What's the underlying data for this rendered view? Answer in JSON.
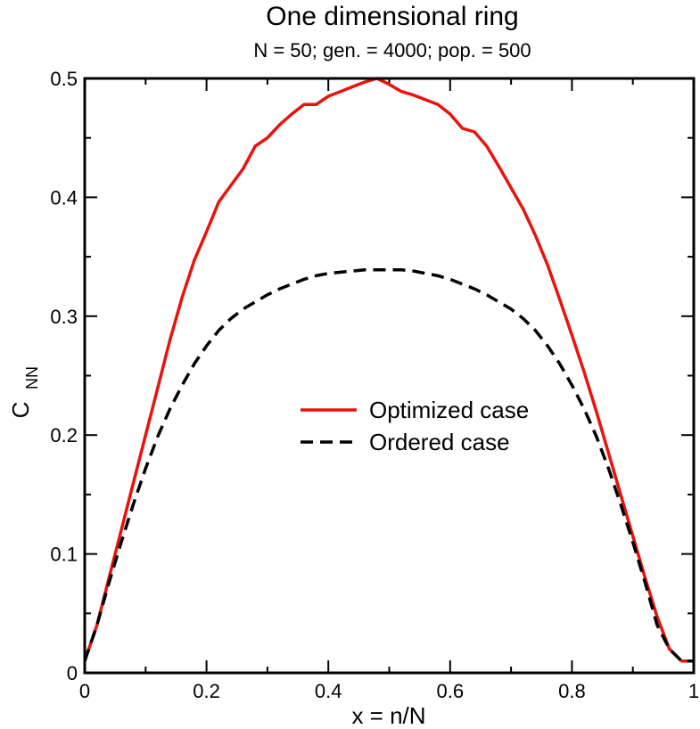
{
  "chart_data": {
    "type": "line",
    "title": "One dimensional ring",
    "subtitle": "N = 50; gen. = 4000; pop. = 500",
    "xlabel": "x = n/N",
    "ylabel_main": "C",
    "ylabel_sub": "NN",
    "xlim": [
      0,
      1
    ],
    "ylim": [
      0,
      0.5
    ],
    "x_ticks": [
      0,
      0.2,
      0.4,
      0.6,
      0.8,
      1
    ],
    "x_tick_labels": [
      "0",
      "0.2",
      "0.4",
      "0.6",
      "0.8",
      "1"
    ],
    "y_ticks": [
      0,
      0.1,
      0.2,
      0.3,
      0.4,
      0.5
    ],
    "y_tick_labels": [
      "0",
      "0.1",
      "0.2",
      "0.3",
      "0.4",
      "0.5"
    ],
    "legend_position": "center-right",
    "series": [
      {
        "name": "Optimized case",
        "color": "#e8120e",
        "style": "solid",
        "x": [
          0,
          0.02,
          0.04,
          0.06,
          0.08,
          0.1,
          0.12,
          0.14,
          0.16,
          0.18,
          0.2,
          0.22,
          0.24,
          0.26,
          0.28,
          0.3,
          0.32,
          0.34,
          0.36,
          0.38,
          0.4,
          0.42,
          0.44,
          0.46,
          0.48,
          0.5,
          0.52,
          0.54,
          0.56,
          0.58,
          0.6,
          0.62,
          0.64,
          0.66,
          0.68,
          0.7,
          0.72,
          0.74,
          0.76,
          0.78,
          0.8,
          0.82,
          0.84,
          0.86,
          0.88,
          0.9,
          0.92,
          0.94,
          0.96,
          0.98,
          1.0
        ],
        "y": [
          0.01,
          0.04,
          0.08,
          0.12,
          0.16,
          0.2,
          0.24,
          0.28,
          0.316,
          0.347,
          0.371,
          0.396,
          0.41,
          0.424,
          0.443,
          0.45,
          0.461,
          0.47,
          0.478,
          0.478,
          0.485,
          0.489,
          0.493,
          0.497,
          0.5,
          0.495,
          0.489,
          0.486,
          0.482,
          0.478,
          0.47,
          0.458,
          0.455,
          0.443,
          0.426,
          0.408,
          0.39,
          0.368,
          0.343,
          0.314,
          0.284,
          0.253,
          0.22,
          0.185,
          0.15,
          0.115,
          0.08,
          0.047,
          0.02,
          0.01,
          0.01
        ]
      },
      {
        "name": "Ordered case",
        "color": "#000000",
        "style": "dashed",
        "x": [
          0,
          0.02,
          0.04,
          0.06,
          0.08,
          0.1,
          0.12,
          0.14,
          0.16,
          0.18,
          0.2,
          0.22,
          0.24,
          0.26,
          0.28,
          0.3,
          0.32,
          0.34,
          0.36,
          0.38,
          0.4,
          0.42,
          0.44,
          0.46,
          0.48,
          0.5,
          0.52,
          0.54,
          0.56,
          0.58,
          0.6,
          0.62,
          0.64,
          0.66,
          0.68,
          0.7,
          0.72,
          0.74,
          0.76,
          0.78,
          0.8,
          0.82,
          0.84,
          0.86,
          0.88,
          0.9,
          0.92,
          0.94,
          0.96,
          0.98,
          1.0
        ],
        "y": [
          0.01,
          0.04,
          0.076,
          0.11,
          0.142,
          0.172,
          0.199,
          0.222,
          0.242,
          0.26,
          0.275,
          0.288,
          0.298,
          0.306,
          0.312,
          0.318,
          0.323,
          0.327,
          0.331,
          0.334,
          0.336,
          0.337,
          0.338,
          0.339,
          0.339,
          0.339,
          0.339,
          0.338,
          0.336,
          0.334,
          0.331,
          0.327,
          0.323,
          0.318,
          0.312,
          0.306,
          0.298,
          0.288,
          0.275,
          0.26,
          0.242,
          0.222,
          0.199,
          0.172,
          0.142,
          0.11,
          0.076,
          0.04,
          0.02,
          0.01,
          0.01
        ]
      }
    ]
  }
}
